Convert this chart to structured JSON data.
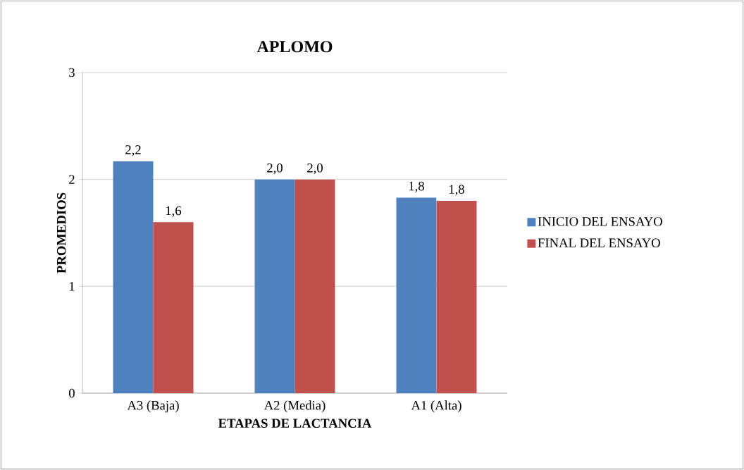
{
  "chart_data": {
    "type": "bar",
    "title": "APLOMO",
    "xlabel": "ETAPAS DE LACTANCIA",
    "ylabel": "PROMEDIOS",
    "categories": [
      "A3 (Baja)",
      "A2 (Media)",
      "A1 (Alta)"
    ],
    "series": [
      {
        "name": "INICIO DEL ENSAYO",
        "color": "#4f81bd",
        "values": [
          2.17,
          2.0,
          1.83
        ],
        "value_labels": [
          "2,2",
          "2,0",
          "1,8"
        ]
      },
      {
        "name": "FINAL DEL ENSAYO",
        "color": "#c0504d",
        "values": [
          1.6,
          2.0,
          1.8
        ],
        "value_labels": [
          "1,6",
          "2,0",
          "1,8"
        ]
      }
    ],
    "ylim": [
      0,
      3
    ],
    "yticks": [
      0,
      1,
      2,
      3
    ],
    "grid": "y",
    "legend": "right"
  }
}
